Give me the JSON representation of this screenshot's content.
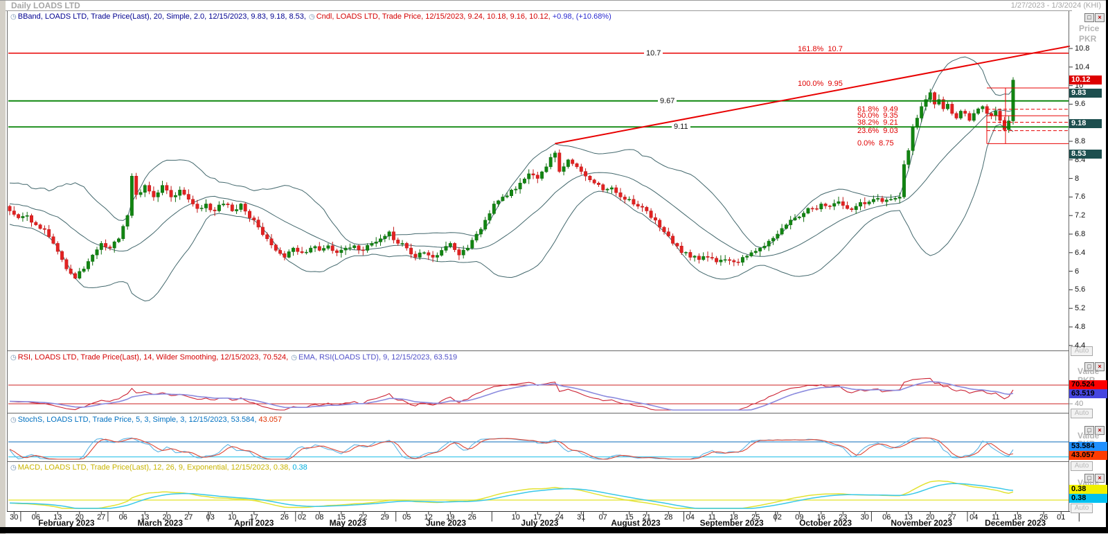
{
  "window": {
    "title": "Daily LOADS LTD",
    "date_range": "1/27/2023 - 1/3/2024 (KHI)",
    "auto_label": "Auto"
  },
  "icons": {
    "restore": "□",
    "close": "×",
    "clock": "◷"
  },
  "main_panel": {
    "legend_bband": "BBand, LOADS LTD, Trade Price(Last),  20, Simple, 2.0,  12/15/2023, 9.83, 9.18, 8.53,",
    "legend_cndl": "Cndl, LOADS LTD, Trade Price,  12/15/2023, 9.24, 10.18, 9.16, 10.12,",
    "legend_change": "+0.98, (+10.68%)",
    "axis_title": "Price",
    "axis_unit": "PKR",
    "badges": [
      {
        "value": "10.12",
        "price": 10.12,
        "bg": "#dd0000",
        "fg": "#ffffff"
      },
      {
        "value": "9.83",
        "price": 9.83,
        "bg": "#1d4f4f",
        "fg": "#ffffff"
      },
      {
        "value": "9.18",
        "price": 9.18,
        "bg": "#1d4f4f",
        "fg": "#ffffff"
      },
      {
        "value": "8.53",
        "price": 8.53,
        "bg": "#1d4f4f",
        "fg": "#ffffff"
      }
    ]
  },
  "rsi_panel": {
    "legend_rsi": "RSI, LOADS LTD, Trade Price(Last),  14, Wilder Smoothing,  12/15/2023, 70.524,",
    "legend_ema": "EMA, RSI(LOADS LTD),  9,  12/15/2023, 63.519",
    "axis_title": "Value",
    "axis_unit": "PKR",
    "tick_label": "40",
    "badges": [
      {
        "value": "70.524",
        "bg": "#ff0000",
        "fg": "#000000"
      },
      {
        "value": "63.519",
        "bg": "#4646e0",
        "fg": "#000000"
      }
    ]
  },
  "stoch_panel": {
    "legend_main": "StochS, LOADS LTD, Trade Price,  5, 3, Simple,  3,  12/15/2023, 53.584,",
    "legend_d": "43.057",
    "axis_title": "Value",
    "axis_unit": "PKR",
    "badges": [
      {
        "value": "53.584",
        "bg": "#2090ff",
        "fg": "#000000"
      },
      {
        "value": "43.057",
        "bg": "#ff3c00",
        "fg": "#000000"
      }
    ]
  },
  "macd_panel": {
    "legend_main": "MACD, LOADS LTD, Trade Price(Last),  12, 26, 9, Exponential,  12/15/2023, 0.38,",
    "legend_signal": "0.38",
    "axis_title": "Value",
    "axis_unit": "PKR",
    "badges": [
      {
        "value": "0.38",
        "bg": "#f0f000",
        "fg": "#000000"
      },
      {
        "value": "0.38",
        "bg": "#00c0f0",
        "fg": "#000000"
      }
    ]
  },
  "chart_data": {
    "type": "candlestick",
    "symbol": "LOADS LTD",
    "period": "Daily",
    "currency": "PKR",
    "last_bar": {
      "date": "12/15/2023",
      "open": 9.24,
      "high": 10.18,
      "low": 9.16,
      "close": 10.12,
      "change": "+0.98",
      "change_pct": "+10.68%"
    },
    "bollinger": {
      "period": 20,
      "stdev": 2.0,
      "upper": 9.83,
      "middle": 9.18,
      "lower": 8.53
    },
    "rsi": {
      "period": 14,
      "method": "Wilder Smoothing",
      "value": 70.524,
      "ema_period": 9,
      "ema_value": 63.519,
      "levels": [
        80,
        40
      ]
    },
    "stochastic": {
      "params": [
        5,
        3,
        3
      ],
      "k": 53.584,
      "d": 43.057,
      "levels": [
        80,
        20
      ]
    },
    "macd": {
      "fast": 12,
      "slow": 26,
      "signal_period": 9,
      "macd": 0.38,
      "signal": 0.38
    },
    "price_axis_ticks": [
      "10.8",
      "10.4",
      "10",
      "9.6",
      "9.2",
      "8.8",
      "8.4",
      "8",
      "7.6",
      "7.2",
      "6.8",
      "6.4",
      "6",
      "5.6",
      "5.2",
      "4.8",
      "4.4"
    ],
    "price_axis_tick_values": [
      10.8,
      10.4,
      10,
      9.6,
      9.2,
      8.8,
      8.4,
      8,
      7.6,
      7.2,
      6.8,
      6.4,
      6,
      5.6,
      5.2,
      4.8,
      4.4
    ],
    "horizontal_levels": [
      {
        "price": 10.7,
        "label": "10.7",
        "color": "#e80000"
      },
      {
        "price": 9.67,
        "label": "9.67",
        "color": "#008000"
      },
      {
        "price": 9.11,
        "label": "9.11",
        "color": "#008000"
      }
    ],
    "fibonacci_levels": [
      {
        "pct": "161.8%",
        "price": "10.7",
        "value": 10.7,
        "style": "none"
      },
      {
        "pct": "100.0%",
        "price": "9.95",
        "value": 9.95,
        "style": "solid"
      },
      {
        "pct": "61.8%",
        "price": "9.49",
        "value": 9.49,
        "style": "dashed"
      },
      {
        "pct": "50.0%",
        "price": "9.35",
        "value": 9.35,
        "style": "solid"
      },
      {
        "pct": "38.2%",
        "price": "9.21",
        "value": 9.21,
        "style": "dashed"
      },
      {
        "pct": "23.6%",
        "price": "9.03",
        "value": 9.03,
        "style": "dashed"
      },
      {
        "pct": "0.0%",
        "price": "8.75",
        "value": 8.75,
        "style": "solid"
      }
    ],
    "trend_line": {
      "from_day": 125,
      "from_price": 8.75,
      "to_day": 243,
      "to_price": 10.85
    },
    "close_anchors": [
      [
        0,
        7.3
      ],
      [
        2,
        7.15
      ],
      [
        4,
        7.2
      ],
      [
        6,
        7.0
      ],
      [
        8,
        6.9
      ],
      [
        10,
        6.6
      ],
      [
        12,
        6.25
      ],
      [
        14,
        5.95
      ],
      [
        15,
        5.85
      ],
      [
        17,
        6.05
      ],
      [
        19,
        6.35
      ],
      [
        21,
        6.6
      ],
      [
        23,
        6.5
      ],
      [
        25,
        6.7
      ],
      [
        27,
        7.2
      ],
      [
        28,
        8.05
      ],
      [
        29,
        7.65
      ],
      [
        31,
        7.85
      ],
      [
        33,
        7.6
      ],
      [
        35,
        7.85
      ],
      [
        37,
        7.6
      ],
      [
        39,
        7.75
      ],
      [
        41,
        7.55
      ],
      [
        43,
        7.35
      ],
      [
        45,
        7.45
      ],
      [
        47,
        7.3
      ],
      [
        49,
        7.45
      ],
      [
        51,
        7.3
      ],
      [
        53,
        7.45
      ],
      [
        55,
        7.15
      ],
      [
        57,
        6.95
      ],
      [
        59,
        6.7
      ],
      [
        61,
        6.45
      ],
      [
        63,
        6.3
      ],
      [
        65,
        6.5
      ],
      [
        67,
        6.4
      ],
      [
        69,
        6.5
      ],
      [
        71,
        6.45
      ],
      [
        73,
        6.55
      ],
      [
        75,
        6.4
      ],
      [
        77,
        6.5
      ],
      [
        79,
        6.55
      ],
      [
        81,
        6.45
      ],
      [
        83,
        6.6
      ],
      [
        85,
        6.7
      ],
      [
        87,
        6.85
      ],
      [
        89,
        6.6
      ],
      [
        91,
        6.5
      ],
      [
        93,
        6.3
      ],
      [
        95,
        6.4
      ],
      [
        97,
        6.3
      ],
      [
        99,
        6.45
      ],
      [
        101,
        6.6
      ],
      [
        103,
        6.35
      ],
      [
        105,
        6.5
      ],
      [
        107,
        6.8
      ],
      [
        109,
        7.1
      ],
      [
        111,
        7.45
      ],
      [
        113,
        7.6
      ],
      [
        115,
        7.75
      ],
      [
        117,
        7.9
      ],
      [
        119,
        8.1
      ],
      [
        121,
        8.0
      ],
      [
        123,
        8.25
      ],
      [
        125,
        8.55
      ],
      [
        126,
        8.15
      ],
      [
        128,
        8.4
      ],
      [
        130,
        8.25
      ],
      [
        132,
        8.05
      ],
      [
        134,
        7.9
      ],
      [
        136,
        7.75
      ],
      [
        138,
        7.8
      ],
      [
        140,
        7.6
      ],
      [
        142,
        7.55
      ],
      [
        144,
        7.4
      ],
      [
        146,
        7.3
      ],
      [
        148,
        7.1
      ],
      [
        150,
        6.85
      ],
      [
        152,
        6.6
      ],
      [
        154,
        6.4
      ],
      [
        156,
        6.3
      ],
      [
        158,
        6.25
      ],
      [
        160,
        6.3
      ],
      [
        162,
        6.2
      ],
      [
        164,
        6.25
      ],
      [
        166,
        6.2
      ],
      [
        168,
        6.3
      ],
      [
        170,
        6.4
      ],
      [
        172,
        6.5
      ],
      [
        174,
        6.65
      ],
      [
        176,
        6.8
      ],
      [
        178,
        7.0
      ],
      [
        180,
        7.15
      ],
      [
        182,
        7.25
      ],
      [
        184,
        7.35
      ],
      [
        186,
        7.45
      ],
      [
        188,
        7.4
      ],
      [
        190,
        7.5
      ],
      [
        192,
        7.35
      ],
      [
        194,
        7.4
      ],
      [
        196,
        7.45
      ],
      [
        198,
        7.55
      ],
      [
        200,
        7.5
      ],
      [
        202,
        7.55
      ],
      [
        204,
        7.6
      ],
      [
        205,
        8.3
      ],
      [
        206,
        8.6
      ],
      [
        207,
        9.1
      ],
      [
        208,
        9.3
      ],
      [
        209,
        9.55
      ],
      [
        210,
        9.7
      ],
      [
        211,
        9.85
      ],
      [
        212,
        9.6
      ],
      [
        213,
        9.7
      ],
      [
        214,
        9.5
      ],
      [
        215,
        9.6
      ],
      [
        216,
        9.4
      ],
      [
        217,
        9.3
      ],
      [
        218,
        9.45
      ],
      [
        219,
        9.4
      ],
      [
        220,
        9.25
      ],
      [
        221,
        9.4
      ],
      [
        222,
        9.5
      ],
      [
        223,
        9.55
      ],
      [
        224,
        9.4
      ],
      [
        225,
        9.35
      ],
      [
        226,
        9.45
      ],
      [
        227,
        9.25
      ],
      [
        228,
        9.05
      ],
      [
        229,
        9.24
      ],
      [
        230,
        10.12
      ]
    ],
    "date_ticks": [
      {
        "d": 1,
        "t": "30"
      },
      {
        "d": 6,
        "t": "06"
      },
      {
        "d": 11,
        "t": "13"
      },
      {
        "d": 16,
        "t": "20"
      },
      {
        "d": 21,
        "t": "27"
      },
      {
        "d": 26,
        "t": "06"
      },
      {
        "d": 31,
        "t": "13"
      },
      {
        "d": 36,
        "t": "20"
      },
      {
        "d": 41,
        "t": "27"
      },
      {
        "d": 46,
        "t": "03"
      },
      {
        "d": 51,
        "t": "10"
      },
      {
        "d": 56,
        "t": "17"
      },
      {
        "d": 63,
        "t": "26"
      },
      {
        "d": 67,
        "t": "02"
      },
      {
        "d": 71,
        "t": "08"
      },
      {
        "d": 76,
        "t": "15"
      },
      {
        "d": 81,
        "t": "22"
      },
      {
        "d": 86,
        "t": "29"
      },
      {
        "d": 91,
        "t": "05"
      },
      {
        "d": 96,
        "t": "12"
      },
      {
        "d": 101,
        "t": "19"
      },
      {
        "d": 106,
        "t": "26"
      },
      {
        "d": 116,
        "t": "10"
      },
      {
        "d": 121,
        "t": "17"
      },
      {
        "d": 126,
        "t": "24"
      },
      {
        "d": 131,
        "t": "31"
      },
      {
        "d": 136,
        "t": "07"
      },
      {
        "d": 142,
        "t": "15"
      },
      {
        "d": 146,
        "t": "21"
      },
      {
        "d": 151,
        "t": "28"
      },
      {
        "d": 156,
        "t": "04"
      },
      {
        "d": 161,
        "t": "11"
      },
      {
        "d": 166,
        "t": "18"
      },
      {
        "d": 171,
        "t": "25"
      },
      {
        "d": 176,
        "t": "02"
      },
      {
        "d": 181,
        "t": "09"
      },
      {
        "d": 186,
        "t": "16"
      },
      {
        "d": 191,
        "t": "23"
      },
      {
        "d": 196,
        "t": "30"
      },
      {
        "d": 201,
        "t": "06"
      },
      {
        "d": 206,
        "t": "13"
      },
      {
        "d": 211,
        "t": "20"
      },
      {
        "d": 216,
        "t": "27"
      },
      {
        "d": 221,
        "t": "04"
      },
      {
        "d": 226,
        "t": "11"
      },
      {
        "d": 231,
        "t": "18"
      },
      {
        "d": 237,
        "t": "26"
      },
      {
        "d": 241,
        "t": "01"
      }
    ],
    "months": [
      {
        "s": 3,
        "e": 23,
        "t": "February 2023"
      },
      {
        "s": 23,
        "e": 46,
        "t": "March 2023"
      },
      {
        "s": 46,
        "e": 66,
        "t": "April 2023"
      },
      {
        "s": 66,
        "e": 89,
        "t": "May 2023"
      },
      {
        "s": 89,
        "e": 111,
        "t": "June 2023"
      },
      {
        "s": 111,
        "e": 132,
        "t": "July 2023"
      },
      {
        "s": 132,
        "e": 155,
        "t": "August 2023"
      },
      {
        "s": 155,
        "e": 176,
        "t": "September 2023"
      },
      {
        "s": 176,
        "e": 198,
        "t": "October 2023"
      },
      {
        "s": 198,
        "e": 220,
        "t": "November 2023"
      },
      {
        "s": 220,
        "e": 241,
        "t": "December 2023"
      }
    ],
    "colors": {
      "candle_up": "#12851g-placeholder",
      "candle_up_fix": "#128512",
      "candle_down": "#e22222",
      "band": "#42676c",
      "rsi_line": "#cc2233",
      "rsi_ema": "#8a8ade",
      "stoch_k": "#5cb4e4",
      "stoch_d": "#dd4433",
      "macd_line": "#e2e232",
      "macd_signal": "#38c8e8"
    }
  }
}
